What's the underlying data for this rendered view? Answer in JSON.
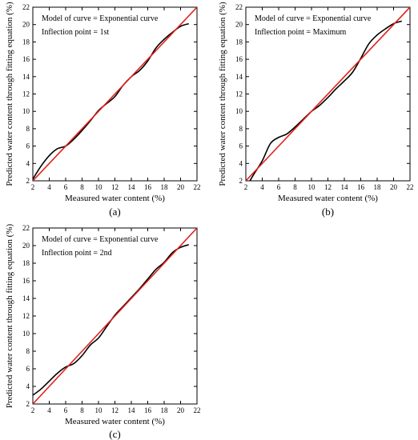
{
  "colors": {
    "curve": "#000000",
    "fit_line": "#e0201c",
    "axis": "#000000"
  },
  "chart_data": [
    {
      "type": "line",
      "panel_label": "(a)",
      "annotation": [
        "Model of curve = Exponential curve",
        "Inflection point = 1st"
      ],
      "xlabel": "Measured water content (%)",
      "ylabel": "Predicted water content through fitting equation (%)",
      "xlim": [
        2,
        22
      ],
      "ylim": [
        2,
        22
      ],
      "xticks": [
        2,
        4,
        6,
        8,
        10,
        12,
        14,
        16,
        18,
        20,
        22
      ],
      "yticks": [
        2,
        4,
        6,
        8,
        10,
        12,
        14,
        16,
        18,
        20,
        22
      ],
      "grid": false,
      "series": [
        {
          "role": "predicted curve",
          "x": [
            2.0,
            3.0,
            4.0,
            5.0,
            6.0,
            7.0,
            8.0,
            9.0,
            10.0,
            11.0,
            12.0,
            13.0,
            14.0,
            15.0,
            16.0,
            17.0,
            18.0,
            19.0,
            20.0,
            21.0
          ],
          "y": [
            2.2,
            3.7,
            4.9,
            5.7,
            6.0,
            6.8,
            7.8,
            8.9,
            10.1,
            10.9,
            11.7,
            13.0,
            14.0,
            14.7,
            15.8,
            17.3,
            18.3,
            19.1,
            19.8,
            20.1
          ]
        },
        {
          "role": "1:1 line",
          "x": [
            2,
            22
          ],
          "y": [
            2,
            22
          ]
        }
      ]
    },
    {
      "type": "line",
      "panel_label": "(b)",
      "annotation": [
        "Model of curve = Exponential curve",
        "Inflection point = Maximum"
      ],
      "xlabel": "Measured water content (%)",
      "ylabel": "Predicted water content through fitting equation (%)",
      "xlim": [
        2,
        22
      ],
      "ylim": [
        2,
        22
      ],
      "xticks": [
        2,
        4,
        6,
        8,
        10,
        12,
        14,
        16,
        18,
        20,
        22
      ],
      "yticks": [
        2,
        4,
        6,
        8,
        10,
        12,
        14,
        16,
        18,
        20,
        22
      ],
      "grid": false,
      "series": [
        {
          "role": "predicted curve",
          "x": [
            2.5,
            3.0,
            4.0,
            5.0,
            6.0,
            7.0,
            8.0,
            9.0,
            10.0,
            11.0,
            12.0,
            13.0,
            14.0,
            15.0,
            16.0,
            17.0,
            18.0,
            19.0,
            20.0,
            21.0
          ],
          "y": [
            2.0,
            2.8,
            4.3,
            6.3,
            7.0,
            7.4,
            8.2,
            9.1,
            10.0,
            10.7,
            11.6,
            12.6,
            13.5,
            14.5,
            16.1,
            17.8,
            18.8,
            19.5,
            20.1,
            20.4
          ]
        },
        {
          "role": "1:1 line",
          "x": [
            2,
            22
          ],
          "y": [
            2,
            22
          ]
        }
      ]
    },
    {
      "type": "line",
      "panel_label": "(c)",
      "annotation": [
        "Model of curve = Exponential curve",
        "Inflection point = 2nd"
      ],
      "xlabel": "Measured water content (%)",
      "ylabel": "Predicted water content through fitting equation (%)",
      "xlim": [
        2,
        22
      ],
      "ylim": [
        2,
        22
      ],
      "xticks": [
        2,
        4,
        6,
        8,
        10,
        12,
        14,
        16,
        18,
        20,
        22
      ],
      "yticks": [
        2,
        4,
        6,
        8,
        10,
        12,
        14,
        16,
        18,
        20,
        22
      ],
      "grid": false,
      "series": [
        {
          "role": "predicted curve",
          "x": [
            2.0,
            3.0,
            4.0,
            5.0,
            6.0,
            7.0,
            8.0,
            9.0,
            10.0,
            11.0,
            12.0,
            13.0,
            14.0,
            15.0,
            16.0,
            17.0,
            18.0,
            19.0,
            20.0,
            21.0
          ],
          "y": [
            3.0,
            3.7,
            4.6,
            5.5,
            6.2,
            6.6,
            7.5,
            8.7,
            9.5,
            10.8,
            12.1,
            13.1,
            14.1,
            15.1,
            16.2,
            17.3,
            18.1,
            19.2,
            19.8,
            20.1
          ]
        },
        {
          "role": "1:1 line",
          "x": [
            2,
            22
          ],
          "y": [
            2,
            22
          ]
        }
      ]
    }
  ]
}
